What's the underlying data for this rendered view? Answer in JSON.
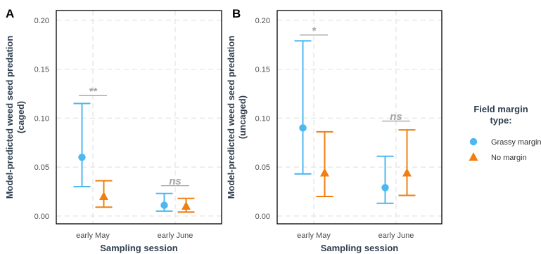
{
  "chart_data": [
    {
      "type": "scatter",
      "panel_label": "A",
      "xlabel": "Sampling session",
      "ylabel_line1": "Model-predicted weed seed predation",
      "ylabel_line2": "(caged)",
      "categories": [
        "early May",
        "early June"
      ],
      "ylim": [
        -0.008,
        0.21
      ],
      "yticks": [
        "0.00",
        "0.05",
        "0.10",
        "0.15",
        "0.20"
      ],
      "grid": true,
      "series": [
        {
          "name": "Grassy margin",
          "color": "#4db8f0",
          "marker": "circle",
          "values": [
            0.06,
            0.011
          ],
          "lower": [
            0.03,
            0.005
          ],
          "upper": [
            0.115,
            0.023
          ]
        },
        {
          "name": "No margin",
          "color": "#f07f10",
          "marker": "triangle",
          "values": [
            0.02,
            0.01
          ],
          "lower": [
            0.009,
            0.004
          ],
          "upper": [
            0.036,
            0.018
          ]
        }
      ],
      "significance": [
        {
          "category": "early May",
          "label": "**",
          "y": 0.123
        },
        {
          "category": "early June",
          "label": "ns",
          "y": 0.031
        }
      ]
    },
    {
      "type": "scatter",
      "panel_label": "B",
      "xlabel": "Sampling session",
      "ylabel_line1": "Model-predicted weed seed predation",
      "ylabel_line2": "(uncaged)",
      "categories": [
        "early May",
        "early June"
      ],
      "ylim": [
        -0.008,
        0.21
      ],
      "yticks": [
        "0.00",
        "0.05",
        "0.10",
        "0.15",
        "0.20"
      ],
      "grid": true,
      "series": [
        {
          "name": "Grassy margin",
          "color": "#4db8f0",
          "marker": "circle",
          "values": [
            0.09,
            0.029
          ],
          "lower": [
            0.043,
            0.013
          ],
          "upper": [
            0.179,
            0.061
          ]
        },
        {
          "name": "No margin",
          "color": "#f07f10",
          "marker": "triangle",
          "values": [
            0.044,
            0.044
          ],
          "lower": [
            0.02,
            0.021
          ],
          "upper": [
            0.086,
            0.088
          ]
        }
      ],
      "significance": [
        {
          "category": "early May",
          "label": "*",
          "y": 0.185
        },
        {
          "category": "early June",
          "label": "ns",
          "y": 0.097
        }
      ]
    }
  ],
  "legend": {
    "title_line1": "Field margin",
    "title_line2": "type:",
    "position": "right",
    "items": [
      {
        "label": "Grassy margin",
        "color": "#4db8f0",
        "marker": "circle"
      },
      {
        "label": "No margin",
        "color": "#f07f10",
        "marker": "triangle"
      }
    ]
  }
}
